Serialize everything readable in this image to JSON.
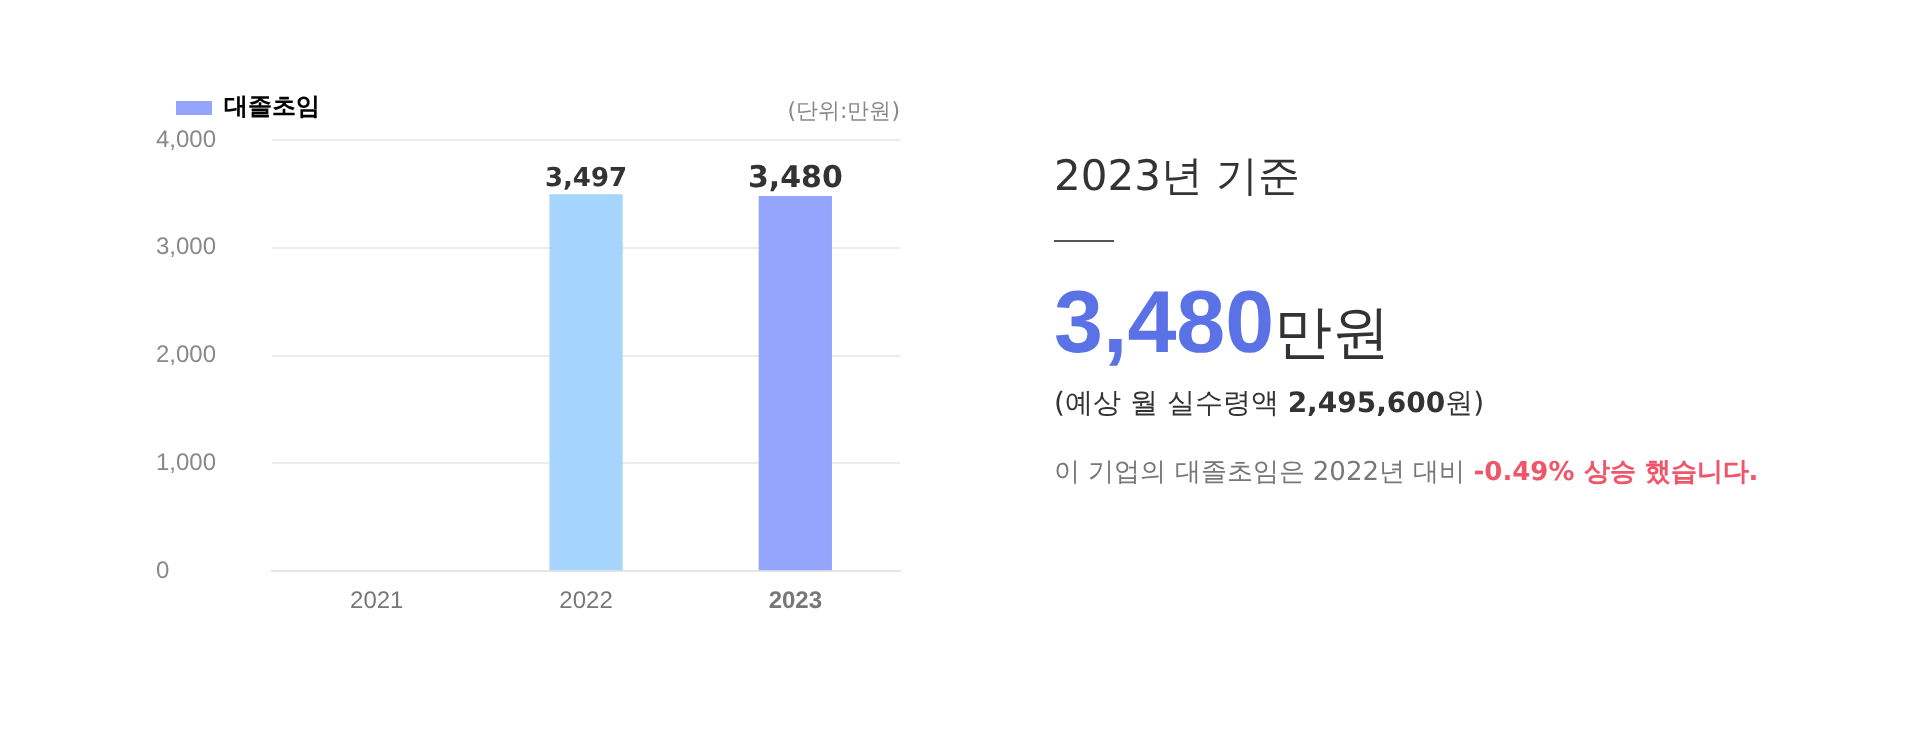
{
  "chart_data": [
    {
      "type": "bar",
      "categories": [
        "2021",
        "2022",
        "2023"
      ],
      "series": [
        {
          "name": "대졸초임",
          "color": "#95a5fe",
          "colors": [
            "#95a5fe",
            "#a5d5fd",
            "#95a5fe"
          ],
          "values": [
            null,
            3497,
            3480
          ],
          "value_labels": [
            null,
            "3,497",
            "3,480"
          ]
        }
      ],
      "ylim": [
        0,
        4000
      ],
      "yticks": [
        0,
        {
          "value": 1000,
          "label": "1,000"
        },
        {
          "value": 2000,
          "label": "2,000"
        },
        {
          "value": 3000,
          "label": "3,000"
        },
        {
          "value": 4000,
          "label": "4,000"
        }
      ],
      "grid": "y",
      "legend": "top left",
      "annotations": [
        "(단위:만원)"
      ]
    },
    {
      "type": "other",
      "title": "2023년 기준",
      "annotations": [
        "3,480",
        "만원",
        "(예상 월 실수령액 ",
        "2,495,600",
        "원)",
        "이 기업의 대졸초임은 2022년 대비 ",
        "-0.49% 상승 했습니다."
      ]
    }
  ]
}
